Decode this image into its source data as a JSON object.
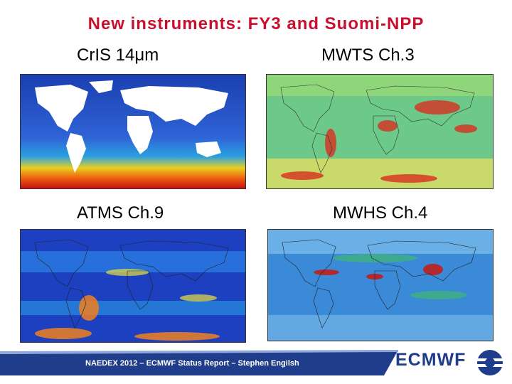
{
  "slide": {
    "title": "New instruments: FY3 and Suomi-NPP",
    "panels": [
      {
        "label": "CrIS 14μm"
      },
      {
        "label": "MWTS Ch.3"
      },
      {
        "label": "ATMS Ch.9"
      },
      {
        "label": "MWHS Ch.4"
      }
    ],
    "footer": "NAEDEX 2012 – ECMWF Status Report – Stephen Engilsh",
    "brand": "ECMWF"
  },
  "colors": {
    "title": "#c8102e",
    "brand": "#1f3d8a",
    "footer_bar": "#1f3d8a"
  }
}
